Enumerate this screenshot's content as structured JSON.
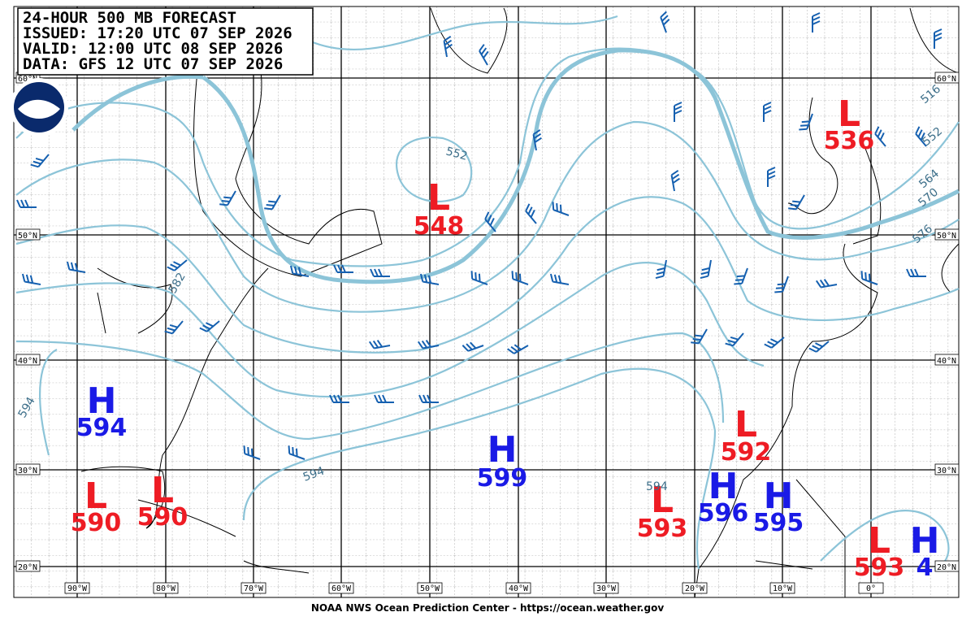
{
  "header": {
    "lines": [
      "24-HOUR 500 MB FORECAST",
      "ISSUED: 17:20 UTC 07 SEP 2026",
      "VALID:  12:00 UTC 08 SEP 2026",
      "DATA:  GFS 12 UTC 07 SEP 2026"
    ]
  },
  "footer": "NOAA NWS Ocean Prediction Center - https://ocean.weather.gov",
  "latitudes": [
    "60°N",
    "50°N",
    "40°N",
    "30°N",
    "20°N"
  ],
  "longitudes": [
    "90°W",
    "80°W",
    "70°W",
    "60°W",
    "50°W",
    "40°W",
    "30°W",
    "20°W",
    "10°W",
    "0°"
  ],
  "centers": [
    {
      "letter": "L",
      "value": "536"
    },
    {
      "letter": "L",
      "value": "548"
    },
    {
      "letter": "H",
      "value": "594"
    },
    {
      "letter": "H",
      "value": "599"
    },
    {
      "letter": "L",
      "value": "592"
    },
    {
      "letter": "L",
      "value": "590"
    },
    {
      "letter": "L",
      "value": "590"
    },
    {
      "letter": "L",
      "value": "593"
    },
    {
      "letter": "H",
      "value": "596"
    },
    {
      "letter": "H",
      "value": "595"
    },
    {
      "letter": "L",
      "value": "593"
    },
    {
      "letter": "H",
      "value": "4"
    }
  ],
  "contour_labels": [
    "552",
    "582",
    "594",
    "594",
    "594",
    "516",
    "552",
    "564",
    "570",
    "576"
  ]
}
